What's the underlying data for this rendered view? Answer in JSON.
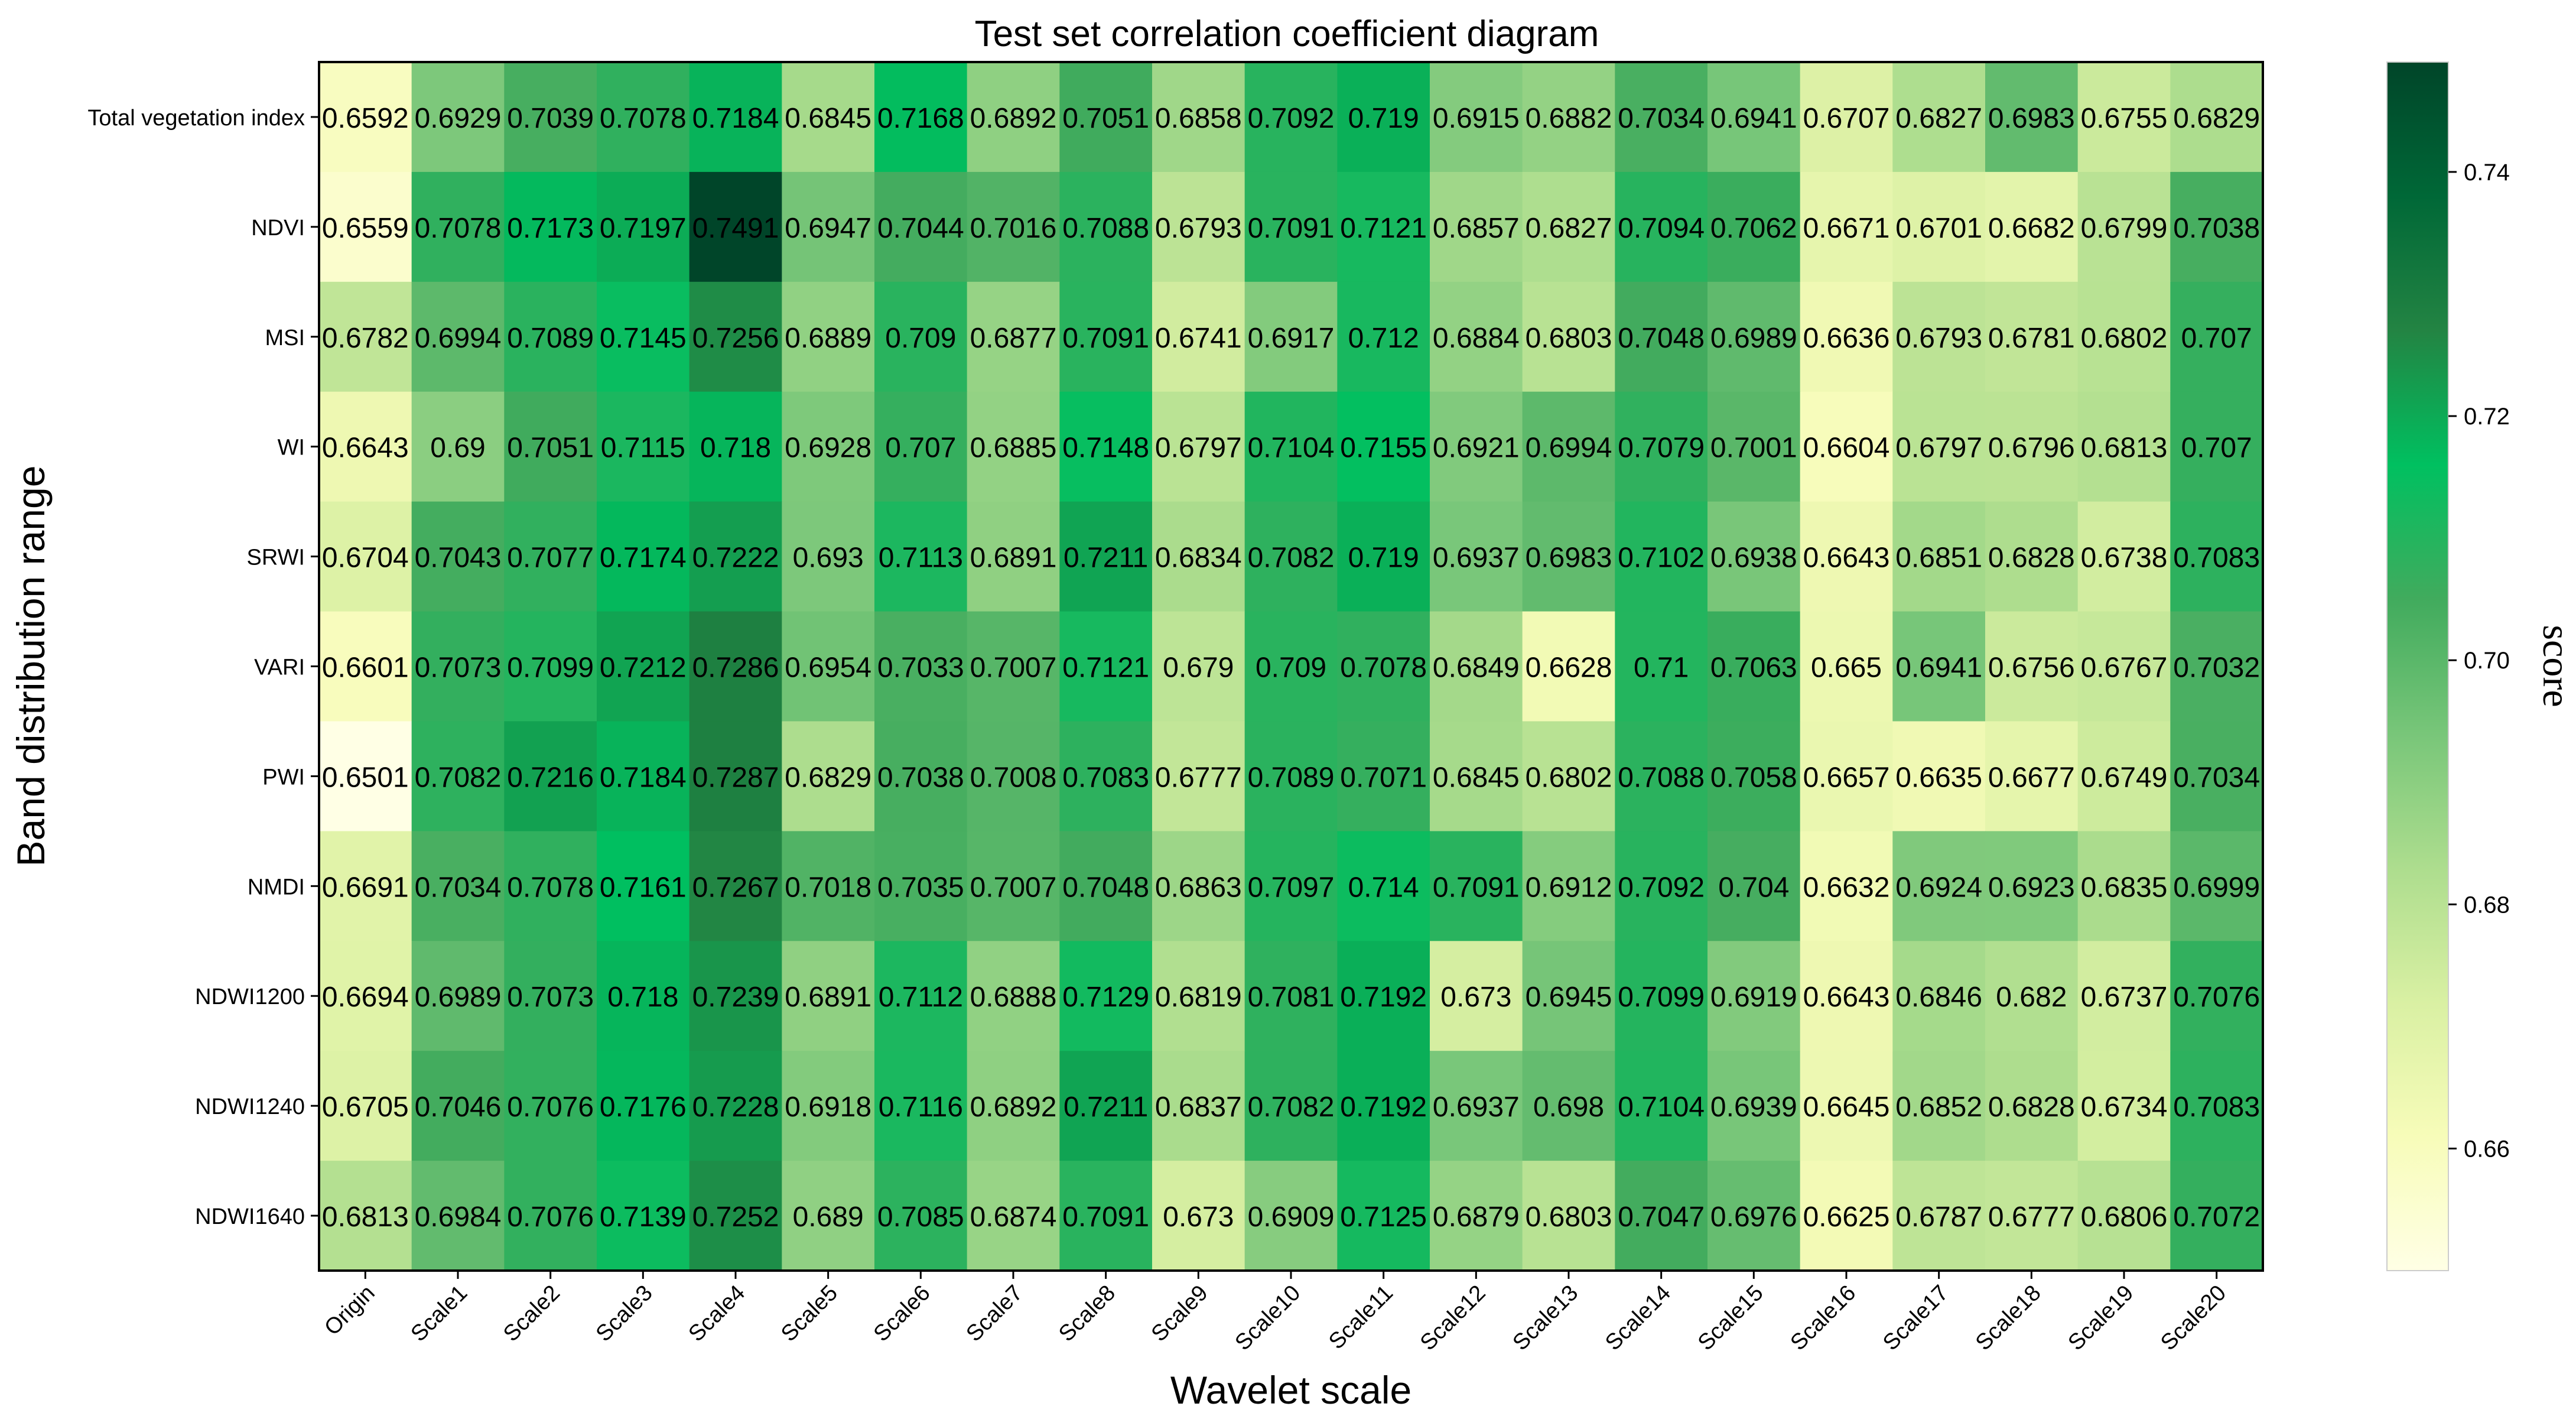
{
  "chart_data": {
    "type": "heatmap",
    "title": "Test set correlation coefficient diagram",
    "xlabel": "Wavelet scale",
    "ylabel": "Band distribution range",
    "colorbar_label": "score",
    "colorbar_range": [
      0.65,
      0.749
    ],
    "colorbar_ticks": [
      0.66,
      0.68,
      0.7,
      0.72,
      0.74
    ],
    "colorbar_tick_labels": [
      "0.66",
      "0.68",
      "0.70",
      "0.72",
      "0.74"
    ],
    "colormap": [
      "#ffffe5",
      "#f7fcb9",
      "#d9f0a3",
      "#addd8e",
      "#78c679",
      "#41ab5d",
      "#00c060",
      "#238443",
      "#006837",
      "#004529"
    ],
    "x_labels": [
      "Origin",
      "Scale1",
      "Scale2",
      "Scale3",
      "Scale4",
      "Scale5",
      "Scale6",
      "Scale7",
      "Scale8",
      "Scale9",
      "Scale10",
      "Scale11",
      "Scale12",
      "Scale13",
      "Scale14",
      "Scale15",
      "Scale16",
      "Scale17",
      "Scale18",
      "Scale19",
      "Scale20"
    ],
    "y_labels": [
      "Total vegetation index",
      "NDVI",
      "MSI",
      "WI",
      "SRWI",
      "VARI",
      "PWI",
      "NMDI",
      "NDWI1200",
      "NDWI1240",
      "NDWI1640"
    ],
    "cells": [
      [
        "0.6592",
        "0.6929",
        "0.7039",
        "0.7078",
        "0.7184",
        "0.6845",
        "0.7168",
        "0.6892",
        "0.7051",
        "0.6858",
        "0.7092",
        "0.719",
        "0.6915",
        "0.6882",
        "0.7034",
        "0.6941",
        "0.6707",
        "0.6827",
        "0.6983",
        "0.6755",
        "0.6829"
      ],
      [
        "0.6559",
        "0.7078",
        "0.7173",
        "0.7197",
        "0.7491",
        "0.6947",
        "0.7044",
        "0.7016",
        "0.7088",
        "0.6793",
        "0.7091",
        "0.7121",
        "0.6857",
        "0.6827",
        "0.7094",
        "0.7062",
        "0.6671",
        "0.6701",
        "0.6682",
        "0.6799",
        "0.7038"
      ],
      [
        "0.6782",
        "0.6994",
        "0.7089",
        "0.7145",
        "0.7256",
        "0.6889",
        "0.709",
        "0.6877",
        "0.7091",
        "0.6741",
        "0.6917",
        "0.712",
        "0.6884",
        "0.6803",
        "0.7048",
        "0.6989",
        "0.6636",
        "0.6793",
        "0.6781",
        "0.6802",
        "0.707"
      ],
      [
        "0.6643",
        "0.69",
        "0.7051",
        "0.7115",
        "0.718",
        "0.6928",
        "0.707",
        "0.6885",
        "0.7148",
        "0.6797",
        "0.7104",
        "0.7155",
        "0.6921",
        "0.6994",
        "0.7079",
        "0.7001",
        "0.6604",
        "0.6797",
        "0.6796",
        "0.6813",
        "0.707"
      ],
      [
        "0.6704",
        "0.7043",
        "0.7077",
        "0.7174",
        "0.7222",
        "0.693",
        "0.7113",
        "0.6891",
        "0.7211",
        "0.6834",
        "0.7082",
        "0.719",
        "0.6937",
        "0.6983",
        "0.7102",
        "0.6938",
        "0.6643",
        "0.6851",
        "0.6828",
        "0.6738",
        "0.7083"
      ],
      [
        "0.6601",
        "0.7073",
        "0.7099",
        "0.7212",
        "0.7286",
        "0.6954",
        "0.7033",
        "0.7007",
        "0.7121",
        "0.679",
        "0.709",
        "0.7078",
        "0.6849",
        "0.6628",
        "0.71",
        "0.7063",
        "0.665",
        "0.6941",
        "0.6756",
        "0.6767",
        "0.7032"
      ],
      [
        "0.6501",
        "0.7082",
        "0.7216",
        "0.7184",
        "0.7287",
        "0.6829",
        "0.7038",
        "0.7008",
        "0.7083",
        "0.6777",
        "0.7089",
        "0.7071",
        "0.6845",
        "0.6802",
        "0.7088",
        "0.7058",
        "0.6657",
        "0.6635",
        "0.6677",
        "0.6749",
        "0.7034"
      ],
      [
        "0.6691",
        "0.7034",
        "0.7078",
        "0.7161",
        "0.7267",
        "0.7018",
        "0.7035",
        "0.7007",
        "0.7048",
        "0.6863",
        "0.7097",
        "0.714",
        "0.7091",
        "0.6912",
        "0.7092",
        "0.704",
        "0.6632",
        "0.6924",
        "0.6923",
        "0.6835",
        "0.6999"
      ],
      [
        "0.6694",
        "0.6989",
        "0.7073",
        "0.718",
        "0.7239",
        "0.6891",
        "0.7112",
        "0.6888",
        "0.7129",
        "0.6819",
        "0.7081",
        "0.7192",
        "0.673",
        "0.6945",
        "0.7099",
        "0.6919",
        "0.6643",
        "0.6846",
        "0.682",
        "0.6737",
        "0.7076"
      ],
      [
        "0.6705",
        "0.7046",
        "0.7076",
        "0.7176",
        "0.7228",
        "0.6918",
        "0.7116",
        "0.6892",
        "0.7211",
        "0.6837",
        "0.7082",
        "0.7192",
        "0.6937",
        "0.698",
        "0.7104",
        "0.6939",
        "0.6645",
        "0.6852",
        "0.6828",
        "0.6734",
        "0.7083"
      ],
      [
        "0.6813",
        "0.6984",
        "0.7076",
        "0.7139",
        "0.7252",
        "0.689",
        "0.7085",
        "0.6874",
        "0.7091",
        "0.673",
        "0.6909",
        "0.7125",
        "0.6879",
        "0.6803",
        "0.7047",
        "0.6976",
        "0.6625",
        "0.6787",
        "0.6777",
        "0.6806",
        "0.7072"
      ]
    ]
  }
}
